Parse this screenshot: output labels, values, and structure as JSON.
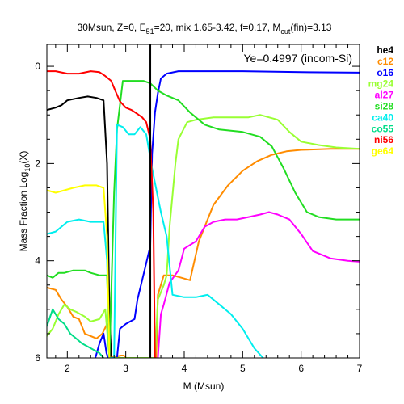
{
  "chart_data": {
    "type": "line",
    "title": "30Msun, Z=0, E51=20, mix 1.65-3.42, f=0.17, Mcut(fin)=3.13",
    "title_parts": {
      "a": "30Msun, Z=0, E",
      "a_sub": "51",
      "b": "=20, mix 1.65-3.42, f=0.17, M",
      "b_sub": "cut",
      "c": "(fin)=3.13"
    },
    "xlabel": "M (Msun)",
    "ylabel_main": "Mass Fraction Log",
    "ylabel_sub": "10",
    "ylabel_end": "(X)",
    "xlim": [
      1.65,
      7.0
    ],
    "ylim": [
      -6.0,
      0.45
    ],
    "x_ticks": [
      2,
      3,
      4,
      5,
      6,
      7
    ],
    "y_ticks": [
      0,
      -2,
      -4,
      -6
    ],
    "y_tick_labels": [
      "0",
      "2",
      "4",
      "6"
    ],
    "annotation": "Ye=0.4997 (incom-Si)",
    "vline_x": 3.42,
    "legend_position": "right",
    "series": [
      {
        "name": "he4",
        "color": "#000000",
        "points": [
          [
            1.65,
            -0.9
          ],
          [
            1.8,
            -0.85
          ],
          [
            1.9,
            -0.8
          ],
          [
            2.0,
            -0.7
          ],
          [
            2.2,
            -0.65
          ],
          [
            2.35,
            -0.62
          ],
          [
            2.5,
            -0.65
          ],
          [
            2.62,
            -0.7
          ],
          [
            2.68,
            -2.0
          ],
          [
            2.72,
            -5.0
          ],
          [
            2.75,
            -6.0
          ]
        ]
      },
      {
        "name": "c12",
        "color": "#ff8c00",
        "points": [
          [
            1.65,
            -4.55
          ],
          [
            1.8,
            -4.6
          ],
          [
            1.9,
            -4.8
          ],
          [
            2.0,
            -4.95
          ],
          [
            2.1,
            -5.15
          ],
          [
            2.2,
            -5.2
          ],
          [
            2.3,
            -5.5
          ],
          [
            2.4,
            -5.55
          ],
          [
            2.5,
            -5.6
          ],
          [
            2.6,
            -5.5
          ],
          [
            2.68,
            -5.3
          ],
          [
            2.72,
            -6.0
          ],
          [
            2.92,
            -5.95
          ],
          [
            2.97,
            -5.95
          ],
          [
            3.0,
            -6.0
          ],
          [
            3.52,
            -6.0
          ],
          [
            3.55,
            -4.7
          ],
          [
            3.65,
            -4.3
          ],
          [
            3.8,
            -4.3
          ],
          [
            3.95,
            -4.35
          ],
          [
            4.1,
            -4.4
          ],
          [
            4.25,
            -3.6
          ],
          [
            4.5,
            -2.85
          ],
          [
            4.75,
            -2.45
          ],
          [
            5.0,
            -2.15
          ],
          [
            5.25,
            -1.95
          ],
          [
            5.5,
            -1.82
          ],
          [
            5.75,
            -1.75
          ],
          [
            6.0,
            -1.72
          ],
          [
            6.5,
            -1.7
          ],
          [
            7.0,
            -1.7
          ]
        ]
      },
      {
        "name": "o16",
        "color": "#0000ff",
        "points": [
          [
            2.48,
            -6.0
          ],
          [
            2.55,
            -5.7
          ],
          [
            2.62,
            -5.5
          ],
          [
            2.67,
            -5.9
          ],
          [
            2.7,
            -6.0
          ],
          [
            2.85,
            -6.0
          ],
          [
            2.9,
            -5.4
          ],
          [
            3.0,
            -5.3
          ],
          [
            3.15,
            -5.2
          ],
          [
            3.2,
            -4.8
          ],
          [
            3.3,
            -4.3
          ],
          [
            3.38,
            -3.9
          ],
          [
            3.42,
            -3.7
          ],
          [
            3.45,
            -1.8
          ],
          [
            3.5,
            -0.95
          ],
          [
            3.55,
            -0.55
          ],
          [
            3.6,
            -0.25
          ],
          [
            3.7,
            -0.15
          ],
          [
            3.9,
            -0.1
          ],
          [
            4.2,
            -0.1
          ],
          [
            5.0,
            -0.1
          ],
          [
            6.0,
            -0.12
          ],
          [
            7.0,
            -0.13
          ]
        ]
      },
      {
        "name": "mg24",
        "color": "#99ff33",
        "points": [
          [
            1.65,
            -5.55
          ],
          [
            1.75,
            -5.4
          ],
          [
            1.85,
            -5.1
          ],
          [
            1.95,
            -4.9
          ],
          [
            2.05,
            -5.0
          ],
          [
            2.15,
            -5.05
          ],
          [
            2.3,
            -5.15
          ],
          [
            2.4,
            -5.25
          ],
          [
            2.55,
            -5.2
          ],
          [
            2.65,
            -5.0
          ],
          [
            2.72,
            -6.0
          ],
          [
            3.5,
            -6.0
          ],
          [
            3.55,
            -4.8
          ],
          [
            3.65,
            -4.5
          ],
          [
            3.7,
            -4.3
          ],
          [
            3.75,
            -3.3
          ],
          [
            3.85,
            -2.0
          ],
          [
            3.9,
            -1.5
          ],
          [
            4.05,
            -1.15
          ],
          [
            4.2,
            -1.1
          ],
          [
            4.5,
            -1.05
          ],
          [
            4.8,
            -1.05
          ],
          [
            5.1,
            -1.05
          ],
          [
            5.3,
            -1.0
          ],
          [
            5.6,
            -1.1
          ],
          [
            5.8,
            -1.35
          ],
          [
            6.0,
            -1.55
          ],
          [
            6.3,
            -1.62
          ],
          [
            6.6,
            -1.67
          ],
          [
            7.0,
            -1.7
          ]
        ]
      },
      {
        "name": "al27",
        "color": "#ff00ff",
        "points": [
          [
            3.55,
            -6.0
          ],
          [
            3.6,
            -5.1
          ],
          [
            3.65,
            -4.9
          ],
          [
            3.75,
            -4.45
          ],
          [
            3.9,
            -4.2
          ],
          [
            4.0,
            -3.75
          ],
          [
            4.2,
            -3.6
          ],
          [
            4.35,
            -3.3
          ],
          [
            4.5,
            -3.2
          ],
          [
            4.7,
            -3.15
          ],
          [
            4.9,
            -3.15
          ],
          [
            5.1,
            -3.1
          ],
          [
            5.3,
            -3.05
          ],
          [
            5.45,
            -3.0
          ],
          [
            5.6,
            -3.05
          ],
          [
            5.8,
            -3.15
          ],
          [
            6.0,
            -3.45
          ],
          [
            6.2,
            -3.8
          ],
          [
            6.5,
            -3.95
          ],
          [
            6.8,
            -4.0
          ],
          [
            7.0,
            -4.02
          ]
        ]
      },
      {
        "name": "si28",
        "color": "#22dd22",
        "points": [
          [
            1.65,
            -4.3
          ],
          [
            1.75,
            -4.35
          ],
          [
            1.85,
            -4.25
          ],
          [
            1.95,
            -4.25
          ],
          [
            2.1,
            -4.2
          ],
          [
            2.3,
            -4.2
          ],
          [
            2.4,
            -4.25
          ],
          [
            2.55,
            -4.3
          ],
          [
            2.68,
            -4.3
          ],
          [
            2.72,
            -6.0
          ],
          [
            2.8,
            -2.6
          ],
          [
            2.85,
            -1.3
          ],
          [
            2.95,
            -0.3
          ],
          [
            3.1,
            -0.3
          ],
          [
            3.3,
            -0.3
          ],
          [
            3.42,
            -0.35
          ],
          [
            3.55,
            -0.5
          ],
          [
            3.7,
            -0.6
          ],
          [
            3.9,
            -0.7
          ],
          [
            4.1,
            -0.95
          ],
          [
            4.35,
            -1.2
          ],
          [
            4.6,
            -1.3
          ],
          [
            5.0,
            -1.35
          ],
          [
            5.3,
            -1.45
          ],
          [
            5.5,
            -1.65
          ],
          [
            5.7,
            -2.1
          ],
          [
            5.9,
            -2.6
          ],
          [
            6.1,
            -3.0
          ],
          [
            6.3,
            -3.1
          ],
          [
            6.6,
            -3.15
          ],
          [
            7.0,
            -3.15
          ]
        ]
      },
      {
        "name": "ca40",
        "color": "#00eeee",
        "points": [
          [
            1.65,
            -3.45
          ],
          [
            1.8,
            -3.4
          ],
          [
            2.0,
            -3.2
          ],
          [
            2.2,
            -3.15
          ],
          [
            2.4,
            -3.2
          ],
          [
            2.55,
            -3.2
          ],
          [
            2.62,
            -3.2
          ],
          [
            2.68,
            -4.0
          ],
          [
            2.72,
            -6.0
          ],
          [
            2.8,
            -6.0
          ],
          [
            2.85,
            -1.2
          ],
          [
            2.95,
            -1.25
          ],
          [
            3.05,
            -1.4
          ],
          [
            3.15,
            -1.4
          ],
          [
            3.25,
            -1.25
          ],
          [
            3.35,
            -1.4
          ],
          [
            3.45,
            -2.1
          ],
          [
            3.6,
            -3.0
          ],
          [
            3.7,
            -3.5
          ],
          [
            3.8,
            -4.7
          ],
          [
            4.0,
            -4.75
          ],
          [
            4.2,
            -4.75
          ],
          [
            4.4,
            -4.7
          ],
          [
            4.6,
            -4.9
          ],
          [
            4.8,
            -5.1
          ],
          [
            5.0,
            -5.4
          ],
          [
            5.2,
            -5.8
          ],
          [
            5.35,
            -6.0
          ]
        ]
      },
      {
        "name": "co55",
        "color": "#00dd88",
        "points": [
          [
            1.65,
            -5.35
          ],
          [
            1.75,
            -5.0
          ],
          [
            1.85,
            -5.2
          ],
          [
            1.95,
            -5.3
          ],
          [
            2.05,
            -5.5
          ],
          [
            2.15,
            -5.6
          ],
          [
            2.25,
            -5.7
          ],
          [
            2.4,
            -5.8
          ],
          [
            2.55,
            -5.9
          ],
          [
            2.62,
            -6.0
          ]
        ]
      },
      {
        "name": "ni56",
        "color": "#ff0000",
        "points": [
          [
            1.65,
            -0.1
          ],
          [
            1.8,
            -0.1
          ],
          [
            2.0,
            -0.15
          ],
          [
            2.2,
            -0.15
          ],
          [
            2.4,
            -0.1
          ],
          [
            2.55,
            -0.12
          ],
          [
            2.65,
            -0.2
          ],
          [
            2.75,
            -0.3
          ],
          [
            2.82,
            -0.5
          ],
          [
            2.9,
            -0.72
          ],
          [
            3.0,
            -0.85
          ],
          [
            3.1,
            -0.9
          ],
          [
            3.2,
            -0.98
          ],
          [
            3.28,
            -1.05
          ],
          [
            3.35,
            -1.15
          ],
          [
            3.42,
            -1.5
          ],
          [
            3.47,
            -3.0
          ],
          [
            3.5,
            -6.0
          ]
        ]
      },
      {
        "name": "ge64",
        "color": "#ffff00",
        "points": [
          [
            1.65,
            -2.55
          ],
          [
            1.8,
            -2.6
          ],
          [
            1.95,
            -2.55
          ],
          [
            2.1,
            -2.5
          ],
          [
            2.3,
            -2.45
          ],
          [
            2.5,
            -2.45
          ],
          [
            2.62,
            -2.5
          ],
          [
            2.68,
            -3.5
          ],
          [
            2.72,
            -6.0
          ]
        ]
      }
    ]
  }
}
